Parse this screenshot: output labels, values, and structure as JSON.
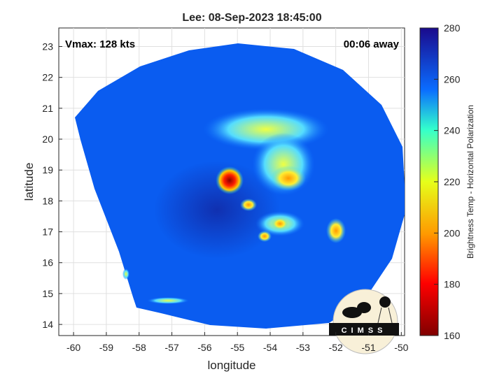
{
  "chart_data": {
    "type": "heatmap",
    "title": "Lee: 08-Sep-2023 18:45:00",
    "xlabel": "longitude",
    "ylabel": "latitude",
    "xlim": [
      -60.45,
      -49.9
    ],
    "ylim": [
      13.64,
      23.6
    ],
    "xticks": [
      -60,
      -59,
      -58,
      -57,
      -56,
      -55,
      -54,
      -53,
      -52,
      -51,
      -50
    ],
    "yticks": [
      14,
      15,
      16,
      17,
      18,
      19,
      20,
      21,
      22,
      23
    ],
    "grid": true,
    "annotations": {
      "vmax": "Vmax: 128 kts",
      "away": "00:06 away"
    },
    "colorbar": {
      "label": "Brightness Temp - Horizontal Polarization",
      "range": [
        160,
        280
      ],
      "ticks": [
        160,
        180,
        200,
        220,
        240,
        260,
        280
      ],
      "colors": [
        "#800000",
        "#ff0000",
        "#ff9900",
        "#e6ff1a",
        "#33ffcc",
        "#0066ff",
        "#1a0a8c"
      ]
    },
    "features": [
      {
        "name": "eye",
        "lon": -55.2,
        "lat": 18.8,
        "value": 170
      },
      {
        "name": "rainband",
        "lon": -53.8,
        "lat": 18.8,
        "value": 205
      },
      {
        "name": "rainband",
        "lon": -54.2,
        "lat": 20.2,
        "value": 220
      },
      {
        "name": "rainband",
        "lon": -53.7,
        "lat": 17.2,
        "value": 205
      },
      {
        "name": "rainband",
        "lon": -52,
        "lat": 17,
        "value": 200
      },
      {
        "name": "background",
        "value": 262
      }
    ]
  },
  "logo": {
    "text": "CIMSS"
  }
}
